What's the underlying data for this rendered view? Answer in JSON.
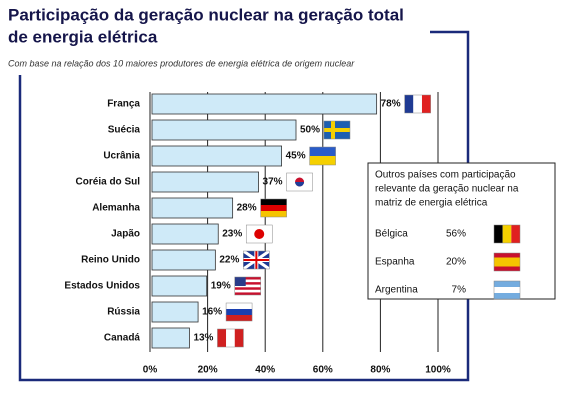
{
  "chart_data": {
    "type": "hbar",
    "title": [
      "Participação da geração nuclear na geração total",
      "de energia elétrica"
    ],
    "subtitle": "Com base na relação dos 10 maiores produtores de energia elétrica de origem nuclear",
    "categories": [
      "França",
      "Suécia",
      "Ucrânia",
      "Coréia do Sul",
      "Alemanha",
      "Japão",
      "Reino Unido",
      "Estados Unidos",
      "Rússia",
      "Canadá"
    ],
    "values": [
      78,
      50,
      45,
      37,
      28,
      23,
      22,
      19,
      16,
      13
    ],
    "value_labels": [
      "78%",
      "50%",
      "45%",
      "37%",
      "28%",
      "23%",
      "22%",
      "19%",
      "16%",
      "13%"
    ],
    "color": "#cfeaf8",
    "xlim": [
      0,
      100
    ],
    "xticks": [
      {
        "value": 0,
        "label": "0%"
      },
      {
        "value": 20,
        "label": "20%"
      },
      {
        "value": 40,
        "label": "40%"
      },
      {
        "value": 60,
        "label": "60%"
      },
      {
        "value": 80,
        "label": "80%"
      },
      {
        "value": 100,
        "label": "100%"
      }
    ],
    "grid": true,
    "inset": {
      "title": [
        "Outros países com participação",
        "relevante da geração nuclear na",
        "matriz de energia elétrica"
      ],
      "rows": [
        {
          "country": "Bélgica",
          "share": "56%"
        },
        {
          "country": "Espanha",
          "share": "20%"
        },
        {
          "country": "Argentina",
          "share": "7%"
        }
      ]
    }
  }
}
